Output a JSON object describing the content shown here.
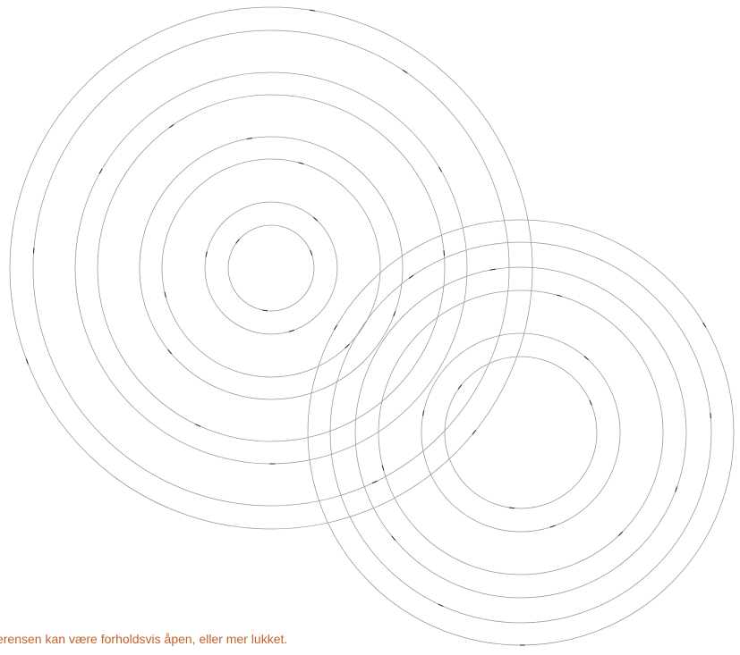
{
  "caption": {
    "text": "erensen kan være forholdsvis åpen, eller mer lukket.",
    "color": "#c2622a"
  },
  "graphic": {
    "stroke_color": "#9a9a9a",
    "accent_color": "#222222"
  }
}
